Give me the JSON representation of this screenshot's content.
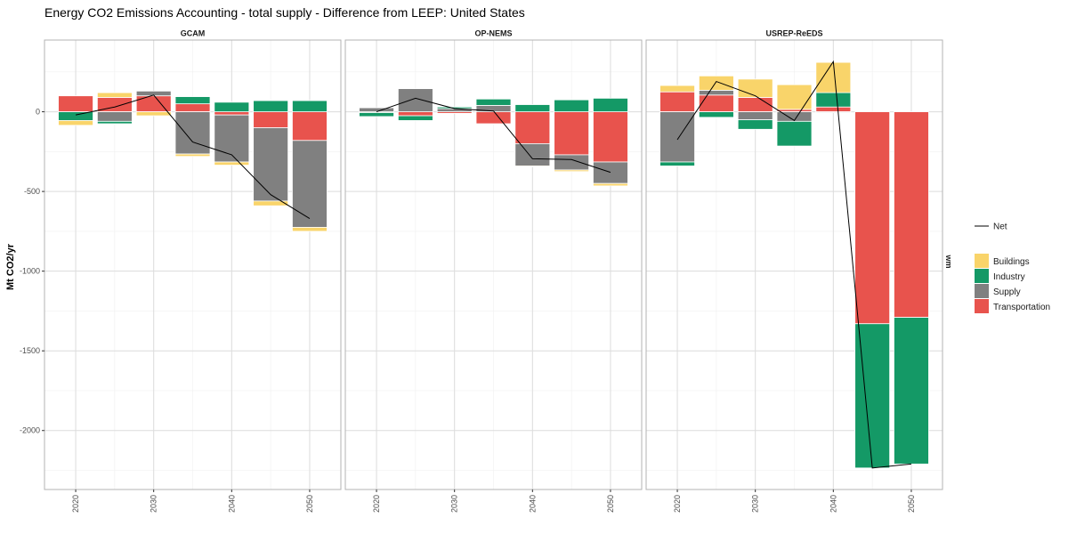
{
  "chart_data": {
    "type": "bar",
    "title": "Energy CO2 Emissions Accounting - total supply  - Difference from LEEP: United States",
    "ylabel": "Mt CO2/yr",
    "ylim": [
      -2370,
      450
    ],
    "yticks": [
      -2000,
      -1500,
      -1000,
      -500,
      0
    ],
    "xticks": [
      2020,
      2030,
      2040,
      2050
    ],
    "xlim": [
      2016,
      2054
    ],
    "grid": true,
    "stacked": true,
    "legend_position": "right",
    "right_strip_label": "wm",
    "colors": {
      "Buildings": "#F9D46A",
      "Industry": "#149966",
      "Supply": "#808080",
      "Transportation": "#E8534D",
      "Net": "#000000"
    },
    "stack_order": [
      "Transportation",
      "Supply",
      "Industry",
      "Buildings"
    ],
    "legend": {
      "line_entry": "Net",
      "fill_entries": [
        "Buildings",
        "Industry",
        "Supply",
        "Transportation"
      ]
    },
    "panels": [
      {
        "name": "GCAM",
        "years": [
          2020,
          2025,
          2030,
          2035,
          2040,
          2045,
          2050
        ],
        "series": [
          {
            "name": "Buildings",
            "values": [
              -30,
              30,
              -25,
              -15,
              -20,
              -30,
              -25
            ]
          },
          {
            "name": "Industry",
            "values": [
              -55,
              -15,
              0,
              45,
              60,
              70,
              70
            ]
          },
          {
            "name": "Supply",
            "values": [
              0,
              -60,
              30,
              -265,
              -295,
              -460,
              -545
            ]
          },
          {
            "name": "Transportation",
            "values": [
              100,
              90,
              100,
              50,
              -20,
              -100,
              -180
            ]
          }
        ],
        "net": [
          -20,
          30,
          105,
          -190,
          -270,
          -520,
          -670
        ]
      },
      {
        "name": "OP-NEMS",
        "years": [
          2020,
          2025,
          2030,
          2035,
          2040,
          2045,
          2050
        ],
        "series": [
          {
            "name": "Buildings",
            "values": [
              0,
              0,
              0,
              0,
              -5,
              -10,
              -15
            ]
          },
          {
            "name": "Industry",
            "values": [
              -25,
              -30,
              10,
              40,
              45,
              75,
              85
            ]
          },
          {
            "name": "Supply",
            "values": [
              25,
              145,
              20,
              40,
              -140,
              -95,
              -135
            ]
          },
          {
            "name": "Transportation",
            "values": [
              -5,
              -25,
              -10,
              -75,
              -200,
              -270,
              -315
            ]
          }
        ],
        "net": [
          0,
          85,
          20,
          5,
          -295,
          -300,
          -380
        ]
      },
      {
        "name": "USREP-ReEDS",
        "years": [
          2020,
          2025,
          2030,
          2035,
          2040,
          2045,
          2050
        ],
        "series": [
          {
            "name": "Buildings",
            "values": [
              40,
              90,
              115,
              155,
              190,
              0,
              0
            ]
          },
          {
            "name": "Industry",
            "values": [
              -25,
              -35,
              -60,
              -155,
              90,
              -905,
              -920
            ]
          },
          {
            "name": "Supply",
            "values": [
              -315,
              30,
              -50,
              -60,
              -5,
              0,
              0
            ]
          },
          {
            "name": "Transportation",
            "values": [
              125,
              105,
              90,
              15,
              30,
              -1330,
              -1290
            ]
          }
        ],
        "net": [
          -175,
          190,
          100,
          -55,
          315,
          -2235,
          -2210
        ]
      }
    ]
  }
}
